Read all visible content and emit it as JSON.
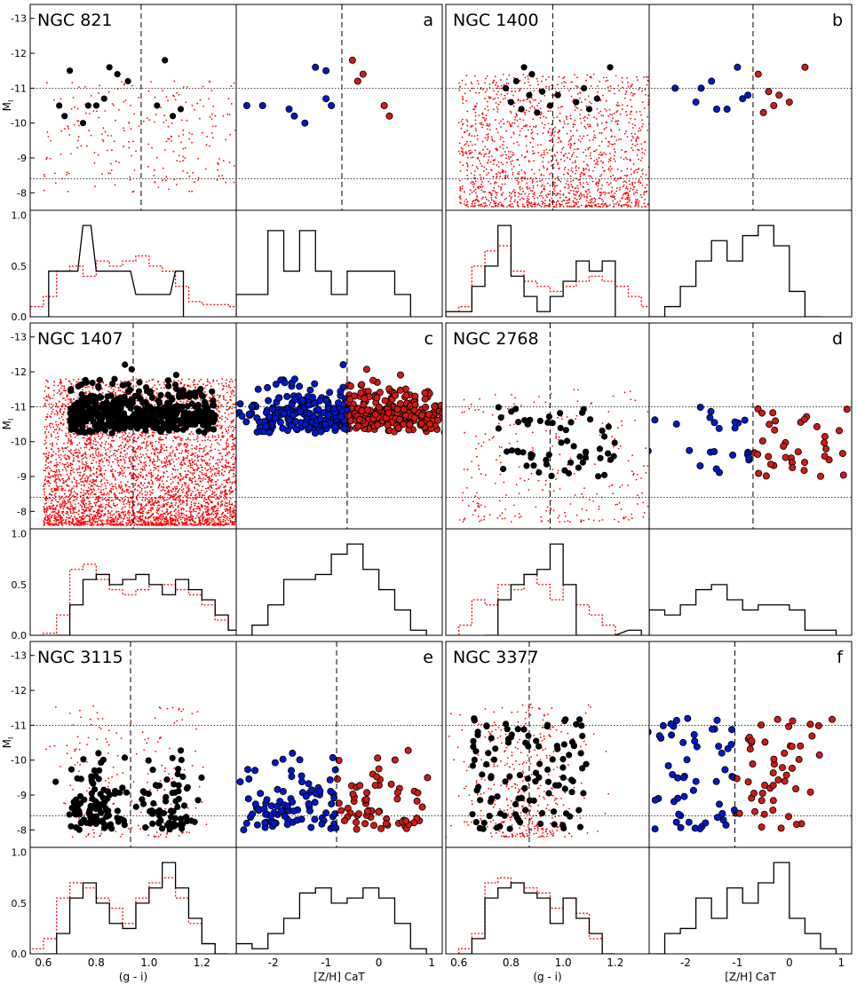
{
  "figure": {
    "type": "multi-panel color-magnitude diagrams with histograms",
    "ylabel": "M",
    "ylabel_sub": "I",
    "xlabel_color": "(g - i)",
    "xlabel_metal": "[Z/H] CaT",
    "hist_yticks": [
      "0.0",
      "0.5",
      "1.0"
    ],
    "cmd_yticks": [
      "-13",
      "-12",
      "-11",
      "-10",
      "-9",
      "-8"
    ],
    "color_xticks": [
      "0.6",
      "0.8",
      "1.0",
      "1.2"
    ],
    "metal_xticks": [
      "-2",
      "-1",
      "0",
      "1"
    ],
    "colors": {
      "black": "#000000",
      "red": "#ff0000",
      "blue": "#0019c8",
      "dotred": "#ff0000",
      "metalred": "#d11a14"
    }
  },
  "chart_data": [
    {
      "type": "scatter",
      "title": "NGC 821",
      "letter": "a",
      "color_range": [
        0.55,
        1.33
      ],
      "metal_range": [
        -2.7,
        1.2
      ],
      "mag_range": [
        -7.5,
        -13.4
      ],
      "dotted_lines_mag": [
        -11.0,
        -8.4
      ],
      "dashed_color": 0.97,
      "dashed_metal": -0.7,
      "clusters": [
        {
          "gi": 0.66,
          "mag": -10.5,
          "z": -2.2
        },
        {
          "gi": 0.68,
          "mag": -10.2,
          "z": -1.6
        },
        {
          "gi": 0.7,
          "mag": -11.5,
          "z": -1.0
        },
        {
          "gi": 0.75,
          "mag": -10.0,
          "z": -1.4
        },
        {
          "gi": 0.77,
          "mag": -10.5,
          "z": -2.5
        },
        {
          "gi": 0.8,
          "mag": -10.5,
          "z": -0.9
        },
        {
          "gi": 0.83,
          "mag": -10.7,
          "z": -1.0
        },
        {
          "gi": 0.85,
          "mag": -11.6,
          "z": -1.2
        },
        {
          "gi": 0.88,
          "mag": -11.4,
          "z": -0.3
        },
        {
          "gi": 0.92,
          "mag": -11.2,
          "z": -0.4
        },
        {
          "gi": 1.03,
          "mag": -10.5,
          "z": 0.1
        },
        {
          "gi": 1.06,
          "mag": -11.8,
          "z": -0.5
        },
        {
          "gi": 1.09,
          "mag": -10.2,
          "z": 0.2
        },
        {
          "gi": 1.12,
          "mag": -10.4,
          "z": -1.7
        }
      ],
      "hist_color_solid": [
        [
          0.62,
          0.45
        ],
        [
          0.65,
          0.45
        ],
        [
          0.7,
          0.45
        ],
        [
          0.75,
          0.9
        ],
        [
          0.8,
          0.45
        ],
        [
          0.85,
          0.45
        ],
        [
          0.9,
          0.45
        ],
        [
          0.95,
          0.22
        ],
        [
          1.0,
          0.22
        ],
        [
          1.05,
          0.22
        ],
        [
          1.1,
          0.45
        ]
      ],
      "hist_color_dotted": [
        [
          0.55,
          0.1
        ],
        [
          0.6,
          0.2
        ],
        [
          0.65,
          0.45
        ],
        [
          0.7,
          0.5
        ],
        [
          0.75,
          0.4
        ],
        [
          0.8,
          0.55
        ],
        [
          0.85,
          0.5
        ],
        [
          0.9,
          0.55
        ],
        [
          0.95,
          0.6
        ],
        [
          1.0,
          0.5
        ],
        [
          1.05,
          0.45
        ],
        [
          1.1,
          0.3
        ],
        [
          1.15,
          0.15
        ],
        [
          1.2,
          0.12
        ],
        [
          1.25,
          0.12
        ],
        [
          1.3,
          0.1
        ]
      ],
      "hist_metal": [
        [
          -2.7,
          0.22
        ],
        [
          -2.4,
          0.22
        ],
        [
          -2.1,
          0.85
        ],
        [
          -1.8,
          0.45
        ],
        [
          -1.5,
          0.85
        ],
        [
          -1.2,
          0.45
        ],
        [
          -0.9,
          0.22
        ],
        [
          -0.6,
          0.45
        ],
        [
          -0.3,
          0.45
        ],
        [
          0.0,
          0.45
        ],
        [
          0.3,
          0.22
        ]
      ]
    },
    {
      "type": "scatter",
      "title": "NGC 1400",
      "letter": "b",
      "color_range": [
        0.55,
        1.33
      ],
      "metal_range": [
        -2.7,
        1.2
      ],
      "mag_range": [
        -7.5,
        -13.4
      ],
      "dotted_lines_mag": [
        -11.0,
        -8.4
      ],
      "dashed_color": 0.96,
      "dashed_metal": -0.7,
      "clusters": [
        {
          "gi": 0.78,
          "mag": -11.0,
          "z": -2.2
        },
        {
          "gi": 0.8,
          "mag": -10.6,
          "z": -1.8
        },
        {
          "gi": 0.82,
          "mag": -11.2,
          "z": -1.5
        },
        {
          "gi": 0.84,
          "mag": -10.4,
          "z": -1.2
        },
        {
          "gi": 0.85,
          "mag": -11.6,
          "z": -1.0
        },
        {
          "gi": 0.87,
          "mag": -10.8,
          "z": -0.8
        },
        {
          "gi": 0.88,
          "mag": -11.4,
          "z": -0.6
        },
        {
          "gi": 0.9,
          "mag": -10.3,
          "z": -0.5
        },
        {
          "gi": 0.92,
          "mag": -10.9,
          "z": -0.4
        },
        {
          "gi": 0.95,
          "mag": -10.5,
          "z": -0.3
        },
        {
          "gi": 0.98,
          "mag": -10.8,
          "z": -0.2
        },
        {
          "gi": 1.05,
          "mag": -10.6,
          "z": 0.0
        },
        {
          "gi": 1.08,
          "mag": -11.0,
          "z": -1.7
        },
        {
          "gi": 1.1,
          "mag": -10.4,
          "z": -1.4
        },
        {
          "gi": 1.13,
          "mag": -10.7,
          "z": -0.9
        },
        {
          "gi": 1.18,
          "mag": -11.6,
          "z": 0.3
        }
      ],
      "hist_color_solid": [
        [
          0.55,
          0.05
        ],
        [
          0.6,
          0.05
        ],
        [
          0.65,
          0.3
        ],
        [
          0.7,
          0.5
        ],
        [
          0.75,
          0.9
        ],
        [
          0.8,
          0.4
        ],
        [
          0.85,
          0.2
        ],
        [
          0.9,
          0.05
        ],
        [
          0.95,
          0.2
        ],
        [
          1.0,
          0.35
        ],
        [
          1.05,
          0.55
        ],
        [
          1.1,
          0.45
        ],
        [
          1.15,
          0.55
        ]
      ],
      "hist_color_dotted": [
        [
          0.55,
          0.05
        ],
        [
          0.6,
          0.1
        ],
        [
          0.65,
          0.5
        ],
        [
          0.7,
          0.65
        ],
        [
          0.75,
          0.7
        ],
        [
          0.8,
          0.45
        ],
        [
          0.85,
          0.35
        ],
        [
          0.9,
          0.3
        ],
        [
          0.95,
          0.25
        ],
        [
          1.0,
          0.3
        ],
        [
          1.05,
          0.35
        ],
        [
          1.1,
          0.4
        ],
        [
          1.15,
          0.35
        ],
        [
          1.2,
          0.3
        ],
        [
          1.25,
          0.2
        ],
        [
          1.3,
          0.1
        ]
      ],
      "hist_metal": [
        [
          -2.7,
          0.0
        ],
        [
          -2.4,
          0.1
        ],
        [
          -2.1,
          0.3
        ],
        [
          -1.8,
          0.55
        ],
        [
          -1.5,
          0.75
        ],
        [
          -1.2,
          0.55
        ],
        [
          -0.9,
          0.8
        ],
        [
          -0.6,
          0.9
        ],
        [
          -0.3,
          0.7
        ],
        [
          0.0,
          0.25
        ],
        [
          0.3,
          0.0
        ]
      ]
    },
    {
      "type": "scatter",
      "title": "NGC 1407",
      "letter": "c",
      "color_range": [
        0.55,
        1.33
      ],
      "metal_range": [
        -2.7,
        1.2
      ],
      "mag_range": [
        -7.5,
        -13.4
      ],
      "dotted_lines_mag": [
        -11.0,
        -8.4
      ],
      "dashed_color": 0.94,
      "dashed_metal": -0.6,
      "clusters": [],
      "hist_color_solid": [
        [
          0.65,
          0.0
        ],
        [
          0.7,
          0.3
        ],
        [
          0.75,
          0.55
        ],
        [
          0.8,
          0.6
        ],
        [
          0.85,
          0.5
        ],
        [
          0.9,
          0.55
        ],
        [
          0.95,
          0.6
        ],
        [
          1.0,
          0.5
        ],
        [
          1.05,
          0.4
        ],
        [
          1.1,
          0.55
        ],
        [
          1.15,
          0.45
        ],
        [
          1.2,
          0.35
        ],
        [
          1.25,
          0.2
        ],
        [
          1.3,
          0.05
        ]
      ],
      "hist_color_dotted": [
        [
          0.55,
          0.0
        ],
        [
          0.6,
          0.02
        ],
        [
          0.65,
          0.2
        ],
        [
          0.7,
          0.65
        ],
        [
          0.75,
          0.7
        ],
        [
          0.8,
          0.55
        ],
        [
          0.85,
          0.45
        ],
        [
          0.9,
          0.4
        ],
        [
          0.95,
          0.45
        ],
        [
          1.0,
          0.5
        ],
        [
          1.05,
          0.5
        ],
        [
          1.1,
          0.45
        ],
        [
          1.15,
          0.4
        ],
        [
          1.2,
          0.3
        ],
        [
          1.25,
          0.15
        ],
        [
          1.3,
          0.05
        ]
      ],
      "hist_metal": [
        [
          -2.7,
          0.0
        ],
        [
          -2.4,
          0.1
        ],
        [
          -2.1,
          0.3
        ],
        [
          -1.8,
          0.55
        ],
        [
          -1.5,
          0.55
        ],
        [
          -1.2,
          0.6
        ],
        [
          -0.9,
          0.8
        ],
        [
          -0.6,
          0.9
        ],
        [
          -0.3,
          0.65
        ],
        [
          0.0,
          0.45
        ],
        [
          0.3,
          0.25
        ],
        [
          0.6,
          0.05
        ]
      ]
    },
    {
      "type": "scatter",
      "title": "NGC 2768",
      "letter": "d",
      "color_range": [
        0.55,
        1.33
      ],
      "metal_range": [
        -2.7,
        1.2
      ],
      "mag_range": [
        -7.5,
        -13.4
      ],
      "dotted_lines_mag": [
        -11.0,
        -8.4
      ],
      "dashed_color": 0.95,
      "dashed_metal": -0.7,
      "clusters": [],
      "hist_color_solid": [
        [
          0.7,
          0.0
        ],
        [
          0.75,
          0.35
        ],
        [
          0.8,
          0.5
        ],
        [
          0.85,
          0.6
        ],
        [
          0.9,
          0.65
        ],
        [
          0.95,
          0.9
        ],
        [
          1.0,
          0.5
        ],
        [
          1.05,
          0.0
        ],
        [
          1.1,
          0.0
        ],
        [
          1.15,
          0.0
        ],
        [
          1.25,
          0.05
        ]
      ],
      "hist_color_dotted": [
        [
          0.6,
          0.1
        ],
        [
          0.65,
          0.35
        ],
        [
          0.7,
          0.3
        ],
        [
          0.75,
          0.5
        ],
        [
          0.8,
          0.45
        ],
        [
          0.85,
          0.6
        ],
        [
          0.9,
          0.5
        ],
        [
          0.95,
          0.35
        ],
        [
          1.0,
          0.5
        ],
        [
          1.05,
          0.3
        ],
        [
          1.1,
          0.2
        ],
        [
          1.15,
          0.1
        ]
      ],
      "hist_metal": [
        [
          -2.7,
          0.25
        ],
        [
          -2.4,
          0.2
        ],
        [
          -2.1,
          0.3
        ],
        [
          -1.8,
          0.45
        ],
        [
          -1.5,
          0.5
        ],
        [
          -1.2,
          0.35
        ],
        [
          -0.9,
          0.25
        ],
        [
          -0.6,
          0.3
        ],
        [
          -0.3,
          0.3
        ],
        [
          0.0,
          0.25
        ],
        [
          0.3,
          0.05
        ],
        [
          0.6,
          0.05
        ]
      ]
    },
    {
      "type": "scatter",
      "title": "NGC 3115",
      "letter": "e",
      "color_range": [
        0.55,
        1.33
      ],
      "metal_range": [
        -2.7,
        1.2
      ],
      "mag_range": [
        -7.5,
        -13.4
      ],
      "dotted_lines_mag": [
        -11.0,
        -8.4
      ],
      "dashed_color": 0.93,
      "dashed_metal": -0.8,
      "clusters": [],
      "hist_color_solid": [
        [
          0.6,
          0.0
        ],
        [
          0.65,
          0.2
        ],
        [
          0.7,
          0.55
        ],
        [
          0.75,
          0.7
        ],
        [
          0.8,
          0.5
        ],
        [
          0.85,
          0.3
        ],
        [
          0.9,
          0.25
        ],
        [
          0.95,
          0.5
        ],
        [
          1.0,
          0.65
        ],
        [
          1.05,
          0.9
        ],
        [
          1.1,
          0.65
        ],
        [
          1.15,
          0.35
        ],
        [
          1.2,
          0.1
        ],
        [
          1.25,
          0.0
        ]
      ],
      "hist_color_dotted": [
        [
          0.55,
          0.05
        ],
        [
          0.6,
          0.15
        ],
        [
          0.65,
          0.55
        ],
        [
          0.7,
          0.7
        ],
        [
          0.75,
          0.65
        ],
        [
          0.8,
          0.55
        ],
        [
          0.85,
          0.45
        ],
        [
          0.9,
          0.3
        ],
        [
          0.95,
          0.55
        ],
        [
          1.0,
          0.7
        ],
        [
          1.05,
          0.75
        ],
        [
          1.1,
          0.55
        ],
        [
          1.15,
          0.3
        ],
        [
          1.2,
          0.1
        ],
        [
          1.25,
          0.0
        ]
      ],
      "hist_metal": [
        [
          -2.7,
          0.1
        ],
        [
          -2.4,
          0.05
        ],
        [
          -2.1,
          0.2
        ],
        [
          -1.8,
          0.35
        ],
        [
          -1.5,
          0.6
        ],
        [
          -1.2,
          0.65
        ],
        [
          -0.9,
          0.5
        ],
        [
          -0.6,
          0.55
        ],
        [
          -0.3,
          0.65
        ],
        [
          0.0,
          0.55
        ],
        [
          0.3,
          0.3
        ],
        [
          0.6,
          0.05
        ]
      ]
    },
    {
      "type": "scatter",
      "title": "NGC 3377",
      "letter": "f",
      "color_range": [
        0.55,
        1.33
      ],
      "metal_range": [
        -2.7,
        1.2
      ],
      "mag_range": [
        -7.5,
        -13.4
      ],
      "dotted_lines_mag": [
        -11.0,
        -8.4
      ],
      "dashed_color": 0.87,
      "dashed_metal": -1.05,
      "clusters": [],
      "hist_color_solid": [
        [
          0.6,
          0.0
        ],
        [
          0.65,
          0.15
        ],
        [
          0.7,
          0.55
        ],
        [
          0.75,
          0.65
        ],
        [
          0.8,
          0.7
        ],
        [
          0.85,
          0.6
        ],
        [
          0.9,
          0.55
        ],
        [
          0.95,
          0.3
        ],
        [
          1.0,
          0.55
        ],
        [
          1.05,
          0.35
        ],
        [
          1.1,
          0.2
        ],
        [
          1.15,
          0.0
        ]
      ],
      "hist_color_dotted": [
        [
          0.6,
          0.05
        ],
        [
          0.65,
          0.2
        ],
        [
          0.7,
          0.7
        ],
        [
          0.75,
          0.75
        ],
        [
          0.8,
          0.7
        ],
        [
          0.85,
          0.65
        ],
        [
          0.9,
          0.6
        ],
        [
          0.95,
          0.45
        ],
        [
          1.0,
          0.55
        ],
        [
          1.05,
          0.4
        ],
        [
          1.1,
          0.15
        ],
        [
          1.15,
          0.0
        ]
      ],
      "hist_metal": [
        [
          -2.7,
          0.0
        ],
        [
          -2.4,
          0.2
        ],
        [
          -2.1,
          0.25
        ],
        [
          -1.8,
          0.55
        ],
        [
          -1.5,
          0.35
        ],
        [
          -1.2,
          0.65
        ],
        [
          -0.9,
          0.5
        ],
        [
          -0.6,
          0.7
        ],
        [
          -0.3,
          0.9
        ],
        [
          0.0,
          0.35
        ],
        [
          0.3,
          0.2
        ],
        [
          0.6,
          0.05
        ]
      ]
    }
  ]
}
